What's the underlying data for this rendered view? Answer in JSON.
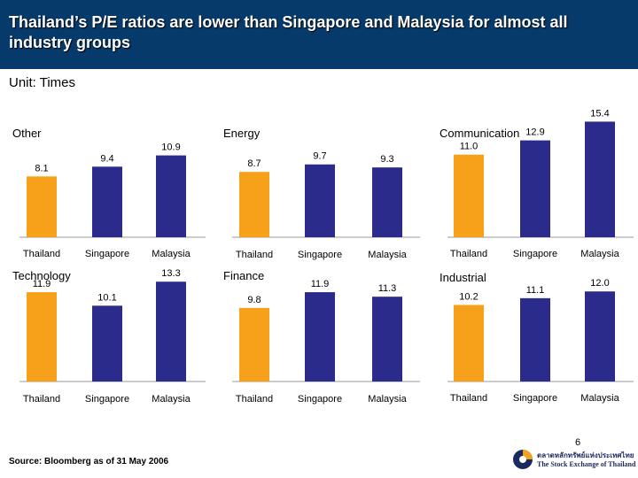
{
  "header": {
    "title": "Thailand’s P/E ratios are lower than Singapore and Malaysia for almost all industry groups"
  },
  "unit_label": "Unit: Times",
  "source": "Source: Bloomberg as of 31 May 2006",
  "page_number": "6",
  "logo": {
    "thai_text": "ตลาดหลักทรัพย์แห่งประเทศไทย",
    "english_text": "The Stock Exchange of Thailand"
  },
  "colors": {
    "thailand": "#f7a11a",
    "others": "#2b2b8c",
    "header_bg": "#063a6b",
    "axis": "#999999"
  },
  "chart_data": [
    {
      "type": "bar",
      "title": "Other",
      "categories": [
        "Thailand",
        "Singapore",
        "Malaysia"
      ],
      "values": [
        8.1,
        9.4,
        10.9
      ]
    },
    {
      "type": "bar",
      "title": "Energy",
      "categories": [
        "Thailand",
        "Singapore",
        "Malaysia"
      ],
      "values": [
        8.7,
        9.7,
        9.3
      ]
    },
    {
      "type": "bar",
      "title": "Communication",
      "categories": [
        "Thailand",
        "Singapore",
        "Malaysia"
      ],
      "values": [
        11.0,
        12.9,
        15.4
      ]
    },
    {
      "type": "bar",
      "title": "Technology",
      "categories": [
        "Thailand",
        "Singapore",
        "Malaysia"
      ],
      "values": [
        11.9,
        10.1,
        13.3
      ]
    },
    {
      "type": "bar",
      "title": "Finance",
      "categories": [
        "Thailand",
        "Singapore",
        "Malaysia"
      ],
      "values": [
        9.8,
        11.9,
        11.3
      ]
    },
    {
      "type": "bar",
      "title": "Industrial",
      "categories": [
        "Thailand",
        "Singapore",
        "Malaysia"
      ],
      "values": [
        10.2,
        11.1,
        12.0
      ]
    }
  ]
}
